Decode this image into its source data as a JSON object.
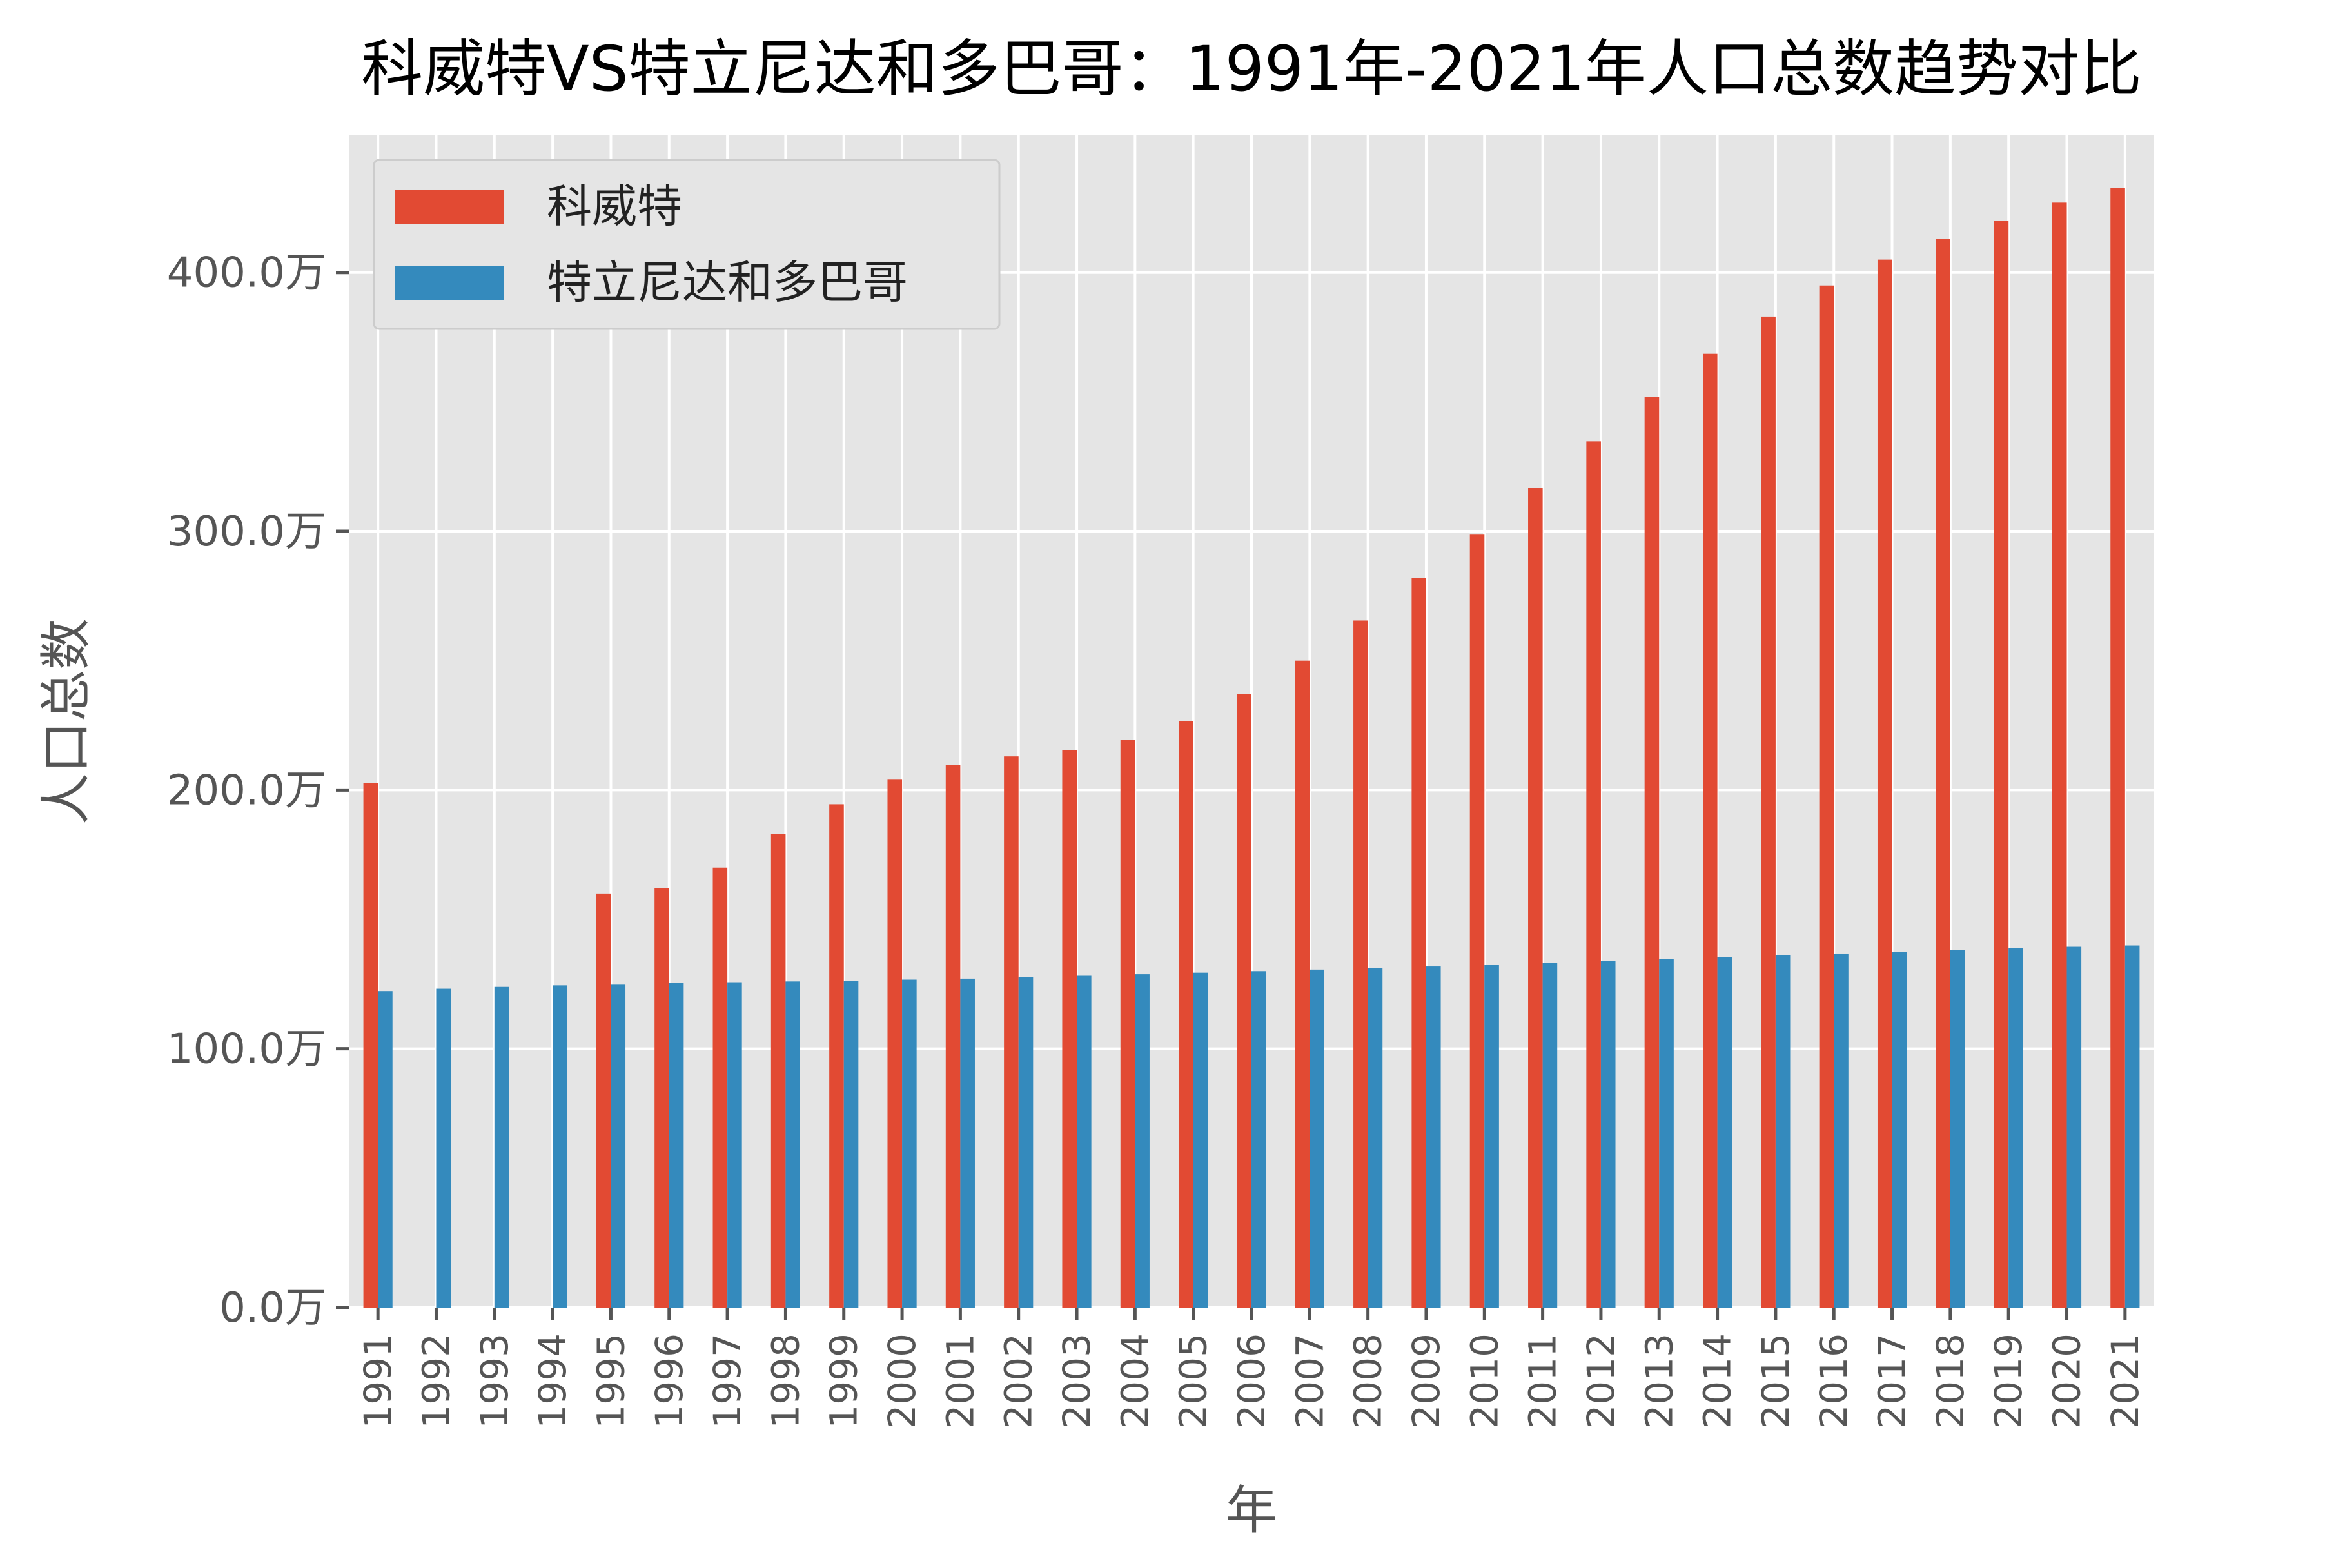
{
  "chart_data": {
    "type": "bar",
    "title": "科威特VS特立尼达和多巴哥：1991年-2021年人口总数趋势对比",
    "xlabel": "年",
    "ylabel": "人口总数",
    "ylim": [
      0,
      453
    ],
    "yticks": [
      0,
      100,
      200,
      300,
      400
    ],
    "ytick_labels": [
      "0.0万",
      "100.0万",
      "200.0万",
      "300.0万",
      "400.0万"
    ],
    "grid": true,
    "legend_position": "top-left",
    "categories": [
      "1991",
      "1992",
      "1993",
      "1994",
      "1995",
      "1996",
      "1997",
      "1998",
      "1999",
      "2000",
      "2001",
      "2002",
      "2003",
      "2004",
      "2005",
      "2006",
      "2007",
      "2008",
      "2009",
      "2010",
      "2011",
      "2012",
      "2013",
      "2014",
      "2015",
      "2016",
      "2017",
      "2018",
      "2019",
      "2020",
      "2021"
    ],
    "series": [
      {
        "name": "科威特",
        "color": "#E24A33",
        "values": [
          202.6,
          null,
          null,
          null,
          160,
          162,
          170,
          183,
          194.5,
          204,
          209.6,
          213,
          215.4,
          219.5,
          226.5,
          237,
          250,
          265.5,
          282,
          298.7,
          316.7,
          334.8,
          352,
          368.6,
          383,
          395,
          405,
          413,
          420,
          427,
          432.6
        ]
      },
      {
        "name": "特立尼达和多巴哥",
        "color": "#348ABD",
        "values": [
          122.3,
          123.2,
          123.9,
          124.5,
          125.0,
          125.4,
          125.7,
          126.0,
          126.3,
          126.7,
          127.1,
          127.6,
          128.2,
          128.8,
          129.4,
          130.0,
          130.6,
          131.2,
          131.8,
          132.5,
          133.2,
          133.9,
          134.6,
          135.4,
          136.1,
          136.8,
          137.5,
          138.2,
          138.8,
          139.4,
          139.9
        ]
      }
    ]
  }
}
